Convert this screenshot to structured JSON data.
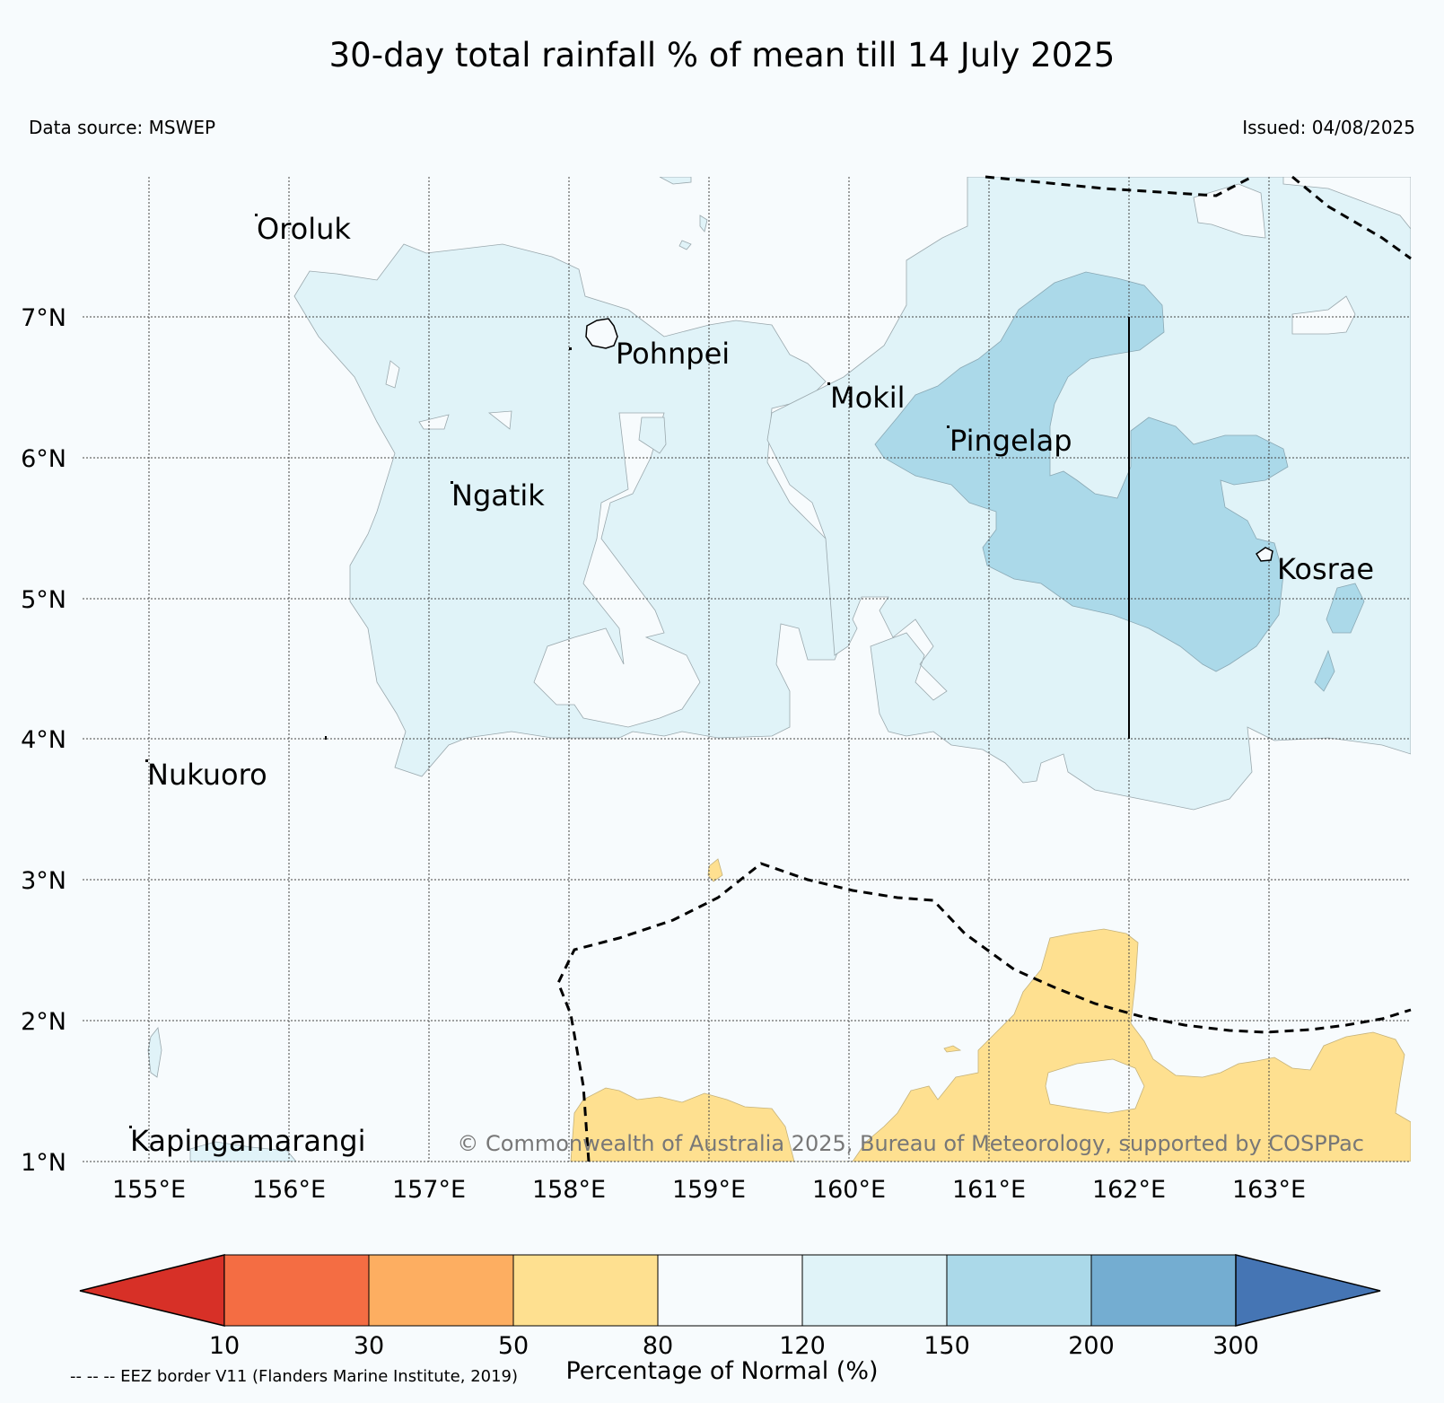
{
  "title": "30-day total rainfall % of mean till 14 July 2025",
  "data_source": "Data source: MSWEP",
  "issued": "Issued: 04/08/2025",
  "copyright": "© Commonwealth of Australia 2025, Bureau of Meteorology, supported by COSPPac",
  "map": {
    "lat_labels": [
      "7°N",
      "6°N",
      "5°N",
      "4°N",
      "3°N",
      "2°N",
      "1°N"
    ],
    "lon_labels": [
      "155°E",
      "156°E",
      "157°E",
      "158°E",
      "159°E",
      "160°E",
      "161°E",
      "162°E",
      "163°E"
    ],
    "places": [
      "Oroluk",
      "Pohnpei",
      "Mokil",
      "Pingelap",
      "Ngatik",
      "Kosrae",
      "Nukuoro",
      "Kapingamarangi"
    ]
  },
  "legend": {
    "label": "Percentage of Normal (%)",
    "ticks": [
      "10",
      "30",
      "50",
      "80",
      "120",
      "150",
      "200",
      "300"
    ],
    "colors": [
      "#d73027",
      "#f46d43",
      "#fdae61",
      "#fee090",
      "#f7fbfd",
      "#e0f3f8",
      "#abd9e9",
      "#74add1",
      "#4575b4"
    ]
  },
  "footnote": "-- -- -- EEZ border V11 (Flanders Marine Institute, 2019)"
}
